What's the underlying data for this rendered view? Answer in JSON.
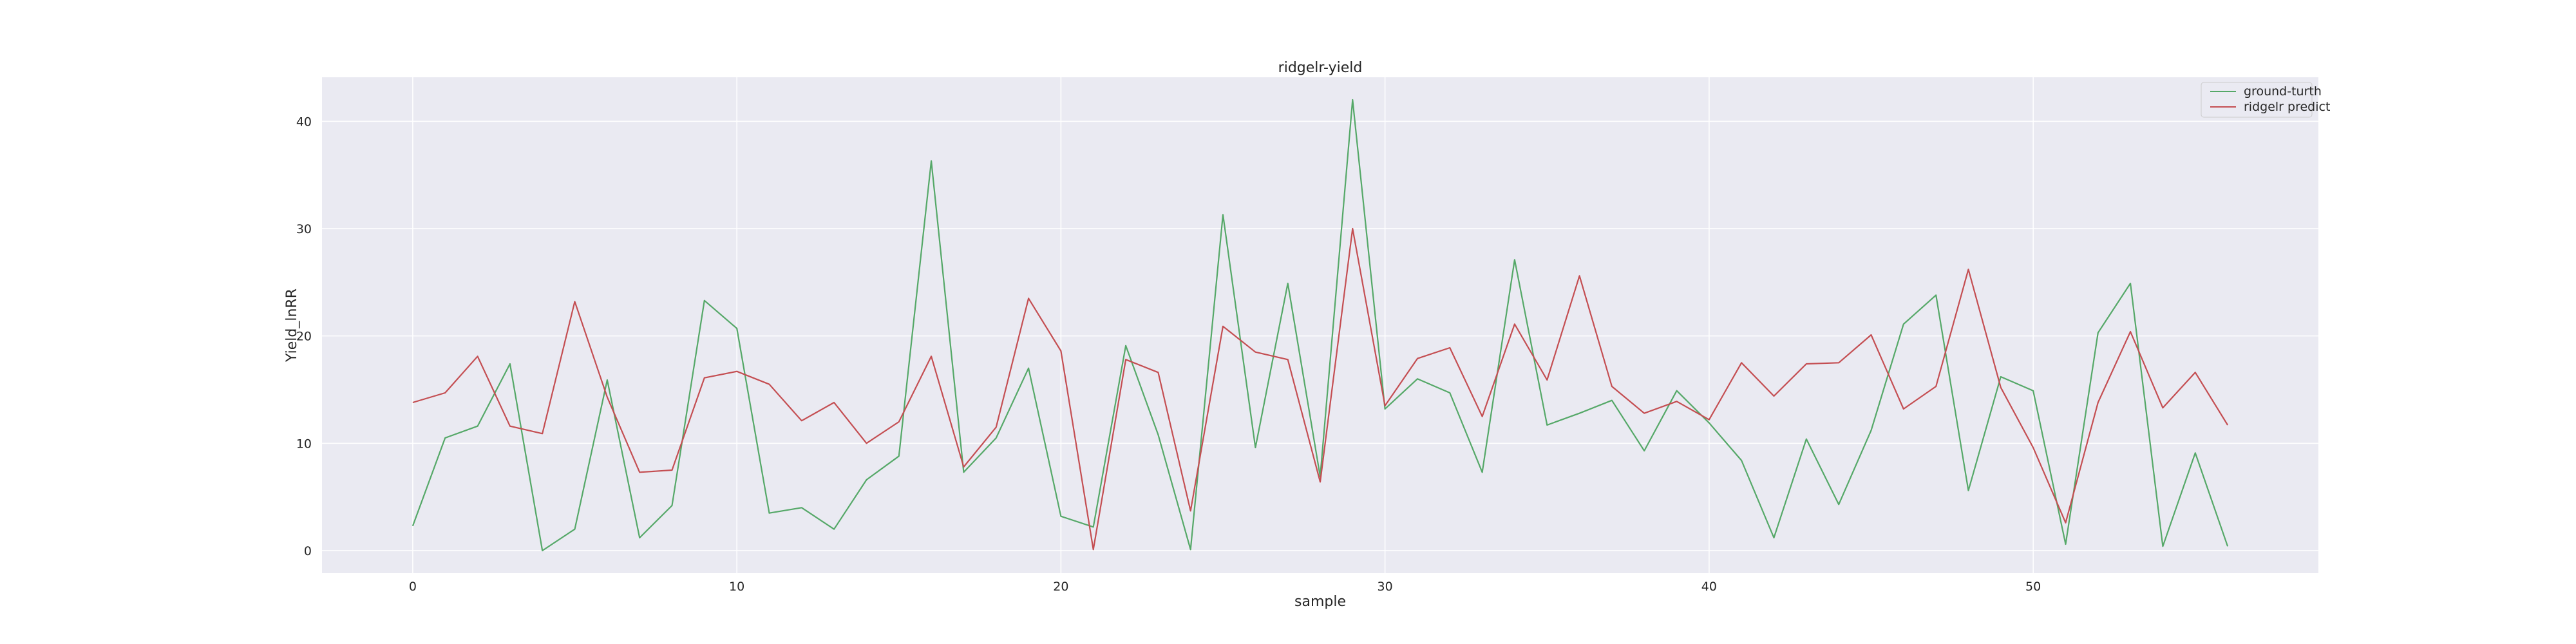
{
  "chart_data": {
    "type": "line",
    "title": "ridgelr-yield",
    "xlabel": "sample",
    "ylabel": "Yield_lnRR",
    "xlim": [
      -2.8,
      58.8
    ],
    "ylim": [
      -2.1,
      44.1
    ],
    "xticks": [
      0,
      10,
      20,
      30,
      40,
      50
    ],
    "yticks": [
      0,
      10,
      20,
      30,
      40
    ],
    "grid": true,
    "legend_position": "top-right",
    "background": "#eaeaf2",
    "x": [
      0,
      1,
      2,
      3,
      4,
      5,
      6,
      7,
      8,
      9,
      10,
      11,
      12,
      13,
      14,
      15,
      16,
      17,
      18,
      19,
      20,
      21,
      22,
      23,
      24,
      25,
      26,
      27,
      28,
      29,
      30,
      31,
      32,
      33,
      34,
      35,
      36,
      37,
      38,
      39,
      40,
      41,
      42,
      43,
      44,
      45,
      46,
      47,
      48,
      49,
      50,
      51,
      52,
      53,
      54,
      55,
      56
    ],
    "series": [
      {
        "name": "ground-turth",
        "color": "#55a868",
        "values": [
          2.3,
          10.5,
          11.6,
          17.4,
          0.0,
          2.0,
          15.9,
          1.2,
          4.2,
          23.3,
          20.7,
          3.5,
          4.0,
          2.0,
          6.6,
          8.8,
          36.3,
          7.3,
          10.5,
          17.0,
          3.2,
          2.2,
          19.1,
          10.8,
          0.1,
          31.3,
          9.6,
          24.9,
          6.9,
          42.0,
          13.2,
          16.0,
          14.7,
          7.3,
          27.1,
          11.7,
          12.8,
          14.0,
          9.3,
          14.9,
          11.9,
          8.4,
          1.2,
          10.4,
          4.3,
          11.2,
          21.1,
          23.8,
          5.6,
          16.2,
          14.9,
          0.6,
          20.3,
          24.9,
          0.4,
          9.1,
          0.4
        ]
      },
      {
        "name": "ridgelr predict",
        "color": "#c44e52",
        "values": [
          13.8,
          14.7,
          18.1,
          11.6,
          10.9,
          23.2,
          14.3,
          7.3,
          7.5,
          16.1,
          16.7,
          15.5,
          12.1,
          13.8,
          10.0,
          12.0,
          18.1,
          7.8,
          11.5,
          23.5,
          18.6,
          0.1,
          17.8,
          16.6,
          3.7,
          20.9,
          18.5,
          17.8,
          6.4,
          30.0,
          13.5,
          17.9,
          18.9,
          12.5,
          21.1,
          15.9,
          25.6,
          15.3,
          12.8,
          13.9,
          12.2,
          17.5,
          14.4,
          17.4,
          17.5,
          20.1,
          13.2,
          15.3,
          26.2,
          15.2,
          9.6,
          2.6,
          13.8,
          20.4,
          13.3,
          16.6,
          11.7
        ]
      }
    ]
  }
}
